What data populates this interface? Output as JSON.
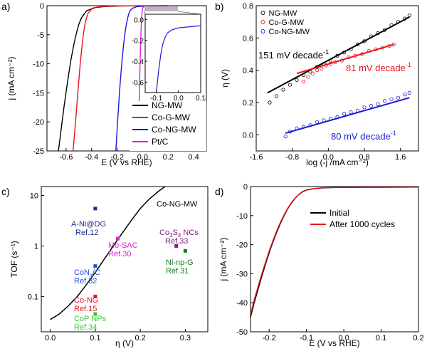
{
  "panel_labels": [
    "a)",
    "b)",
    "c)",
    "d)"
  ],
  "chart_data": [
    {
      "type": "line",
      "panel": "a)",
      "xlabel": "E (V vs RHE)",
      "ylabel": "j (mA cm⁻²)",
      "xlim": [
        -0.75,
        0.5
      ],
      "ylim": [
        -25,
        0
      ],
      "xticks": [
        "-0.6",
        "-0.4",
        "-0.2",
        "0.0",
        "0.2",
        "0.4"
      ],
      "yticks": [
        "0",
        "-5",
        "-10",
        "-15",
        "-20",
        "-25"
      ],
      "legend_position": "bottom-right",
      "series": [
        {
          "name": "NG-MW",
          "color": "#000000",
          "x": [
            -0.66,
            -0.64,
            -0.62,
            -0.6,
            -0.58,
            -0.56,
            -0.54,
            -0.52,
            -0.5,
            -0.48,
            -0.44,
            -0.38,
            -0.3,
            -0.2,
            -0.1,
            0.0,
            0.2
          ],
          "y": [
            -25,
            -21.5,
            -18,
            -14.8,
            -11.8,
            -9.1,
            -6.8,
            -4.8,
            -3.2,
            -2.1,
            -0.9,
            -0.35,
            -0.15,
            -0.06,
            -0.03,
            -0.01,
            0
          ]
        },
        {
          "name": "Co-G-MW",
          "color": "#e8141c",
          "x": [
            -0.545,
            -0.53,
            -0.52,
            -0.51,
            -0.5,
            -0.49,
            -0.48,
            -0.47,
            -0.46,
            -0.45,
            -0.43,
            -0.4,
            -0.36,
            -0.3,
            -0.2,
            0.0,
            0.2
          ],
          "y": [
            -25,
            -21,
            -18.4,
            -15.5,
            -12.8,
            -10.2,
            -7.9,
            -5.9,
            -4.2,
            -2.9,
            -1.4,
            -0.6,
            -0.25,
            -0.1,
            -0.04,
            -0.01,
            0
          ]
        },
        {
          "name": "Co-NG-MW",
          "color": "#1a1ad8",
          "x": [
            -0.21,
            -0.2,
            -0.19,
            -0.18,
            -0.17,
            -0.16,
            -0.15,
            -0.14,
            -0.13,
            -0.12,
            -0.11,
            -0.1,
            -0.08,
            -0.05,
            0.0,
            0.1,
            0.2
          ],
          "y": [
            -25,
            -21.2,
            -17.8,
            -14.6,
            -11.7,
            -9.1,
            -6.9,
            -5.0,
            -3.5,
            -2.4,
            -1.5,
            -0.9,
            -0.45,
            -0.2,
            -0.08,
            -0.03,
            0
          ]
        },
        {
          "name": "Pt/C",
          "color": "#e020e0",
          "x": [
            -0.03,
            -0.03,
            -0.025,
            -0.02,
            -0.015,
            -0.01,
            -0.005,
            0.0,
            0.01,
            0.03,
            0.1,
            0.2
          ],
          "y": [
            -25,
            -20,
            -15,
            -10,
            -6,
            -3,
            -1.2,
            -0.4,
            -0.1,
            -0.03,
            -0.01,
            0
          ]
        }
      ],
      "inset": {
        "xlim": [
          -0.15,
          0.1
        ],
        "ylim": [
          -0.7,
          0.05
        ],
        "xticks": [
          "-0.1",
          "0.0",
          "0.1"
        ],
        "yticks": [
          "0.0",
          "-0.2",
          "-0.4",
          "-0.6"
        ],
        "series": [
          {
            "name": "Co-NG-MW",
            "color": "#1a1ad8",
            "x": [
              -0.1,
              -0.095,
              -0.09,
              -0.085,
              -0.08,
              -0.075,
              -0.07,
              -0.06,
              -0.05,
              -0.03,
              0.0,
              0.05,
              0.1
            ],
            "y": [
              -0.7,
              -0.6,
              -0.5,
              -0.42,
              -0.34,
              -0.28,
              -0.23,
              -0.17,
              -0.13,
              -0.1,
              -0.08,
              -0.07,
              -0.06
            ]
          }
        ]
      }
    },
    {
      "type": "scatter",
      "panel": "b)",
      "xlabel": "log (-j /mA cm⁻²)",
      "ylabel": "η (V)",
      "xlim": [
        -1.6,
        2.0
      ],
      "ylim": [
        -0.1,
        0.8
      ],
      "xticks": [
        "-1.6",
        "-0.8",
        "0.0",
        "0.8",
        "1.6"
      ],
      "yticks": [
        "0.0",
        "0.2",
        "0.4",
        "0.6",
        "0.8"
      ],
      "legend_position": "top-left",
      "series": [
        {
          "name": "NG-MW",
          "color": "#000000",
          "x": [
            -1.3,
            -1.15,
            -1.0,
            -0.85,
            -0.7,
            -0.55,
            -0.4,
            -0.25,
            -0.1,
            0.05,
            0.2,
            0.35,
            0.5,
            0.65,
            0.8,
            0.95,
            1.1,
            1.25,
            1.4,
            1.55,
            1.7,
            1.8
          ],
          "y": [
            0.2,
            0.24,
            0.28,
            0.31,
            0.34,
            0.37,
            0.39,
            0.42,
            0.44,
            0.46,
            0.49,
            0.51,
            0.53,
            0.56,
            0.58,
            0.61,
            0.63,
            0.65,
            0.68,
            0.7,
            0.72,
            0.74
          ]
        },
        {
          "name": "Co-G-MW",
          "color": "#e8141c",
          "x": [
            -0.55,
            -0.45,
            -0.35,
            -0.25,
            -0.15,
            -0.05,
            0.05,
            0.15,
            0.3,
            0.45,
            0.6,
            0.75,
            0.9,
            1.05,
            1.2,
            1.35,
            1.45
          ],
          "y": [
            0.33,
            0.36,
            0.38,
            0.4,
            0.41,
            0.43,
            0.44,
            0.45,
            0.46,
            0.48,
            0.49,
            0.5,
            0.52,
            0.53,
            0.54,
            0.55,
            0.56
          ]
        },
        {
          "name": "Co-NG-MW",
          "color": "#1a1ad8",
          "x": [
            -0.95,
            -0.85,
            -0.7,
            -0.55,
            -0.4,
            -0.25,
            -0.1,
            0.05,
            0.2,
            0.35,
            0.5,
            0.65,
            0.8,
            0.95,
            1.1,
            1.25,
            1.4,
            1.55,
            1.7,
            1.8
          ],
          "y": [
            -0.01,
            0.02,
            0.04,
            0.05,
            0.06,
            0.08,
            0.09,
            0.1,
            0.11,
            0.13,
            0.14,
            0.15,
            0.17,
            0.18,
            0.19,
            0.21,
            0.22,
            0.23,
            0.25,
            0.26
          ]
        }
      ],
      "fits": [
        {
          "label": "151 mV decade-1",
          "color": "#000000",
          "x": [
            -1.35,
            1.8
          ],
          "y": [
            0.26,
            0.73
          ]
        },
        {
          "label": "81 mV decade-1",
          "color": "#e8141c",
          "x": [
            -0.7,
            1.45
          ],
          "y": [
            0.38,
            0.56
          ]
        },
        {
          "label": "80 mV decade-1",
          "color": "#1a1ad8",
          "x": [
            -0.95,
            1.8
          ],
          "y": [
            0.01,
            0.23
          ]
        }
      ],
      "annotations": [
        {
          "text": "151 mV decade",
          "sup": "-1",
          "color": "#000000"
        },
        {
          "text": "81 mV decade",
          "sup": "-1",
          "color": "#e8141c"
        },
        {
          "text": "80 mV decade",
          "sup": "-1",
          "color": "#1a1ad8"
        }
      ]
    },
    {
      "type": "scatter",
      "panel": "c)",
      "xlabel": "η (V)",
      "ylabel": "TOF (s⁻¹)",
      "yscale": "log",
      "xlim": [
        -0.02,
        0.35
      ],
      "ylim": [
        0.02,
        15
      ],
      "xticks": [
        "0.0",
        "0.1",
        "0.2",
        "0.3"
      ],
      "yticks": [
        "10",
        "1",
        "0.1"
      ],
      "curve": {
        "name": "Co-NG-MW",
        "color": "#000000",
        "x": [
          0.0,
          0.02,
          0.04,
          0.06,
          0.08,
          0.1,
          0.12,
          0.14,
          0.16,
          0.18,
          0.2,
          0.22,
          0.24,
          0.255
        ],
        "y": [
          0.035,
          0.045,
          0.065,
          0.1,
          0.17,
          0.3,
          0.55,
          1.0,
          1.8,
          3.2,
          5.5,
          8.5,
          12,
          15
        ]
      },
      "points": [
        {
          "label": "A-Ni@DG",
          "ref": "Ref.12",
          "x": 0.1,
          "y": 5.5,
          "color": "#1e2f8a"
        },
        {
          "label": "Mo-SAC",
          "ref": "Ref.30",
          "x": 0.15,
          "y": 1.4,
          "color": "#e020e0"
        },
        {
          "label": "CoNx/C",
          "ref": "Ref.32",
          "x": 0.1,
          "y": 0.4,
          "color": "#1a4fd8"
        },
        {
          "label": "Co-NG",
          "ref": "Ref.15",
          "x": 0.1,
          "y": 0.1,
          "color": "#e8141c"
        },
        {
          "label": "CoP NPs",
          "ref": "Ref.34",
          "x": 0.1,
          "y": 0.045,
          "color": "#33cc33"
        },
        {
          "label": "Co3S4 NCs",
          "ref": "Ref.33",
          "x": 0.28,
          "y": 1.0,
          "color": "#7a1f7a"
        },
        {
          "label": "Ni-np-G",
          "ref": "Ref.31",
          "x": 0.3,
          "y": 0.8,
          "color": "#1a7a1a"
        }
      ],
      "labels": {
        "curve": "Co-NG-MW",
        "a_ni": "A-Ni@DG",
        "ref12": "Ref.12",
        "mo_sac": "Mo-SAC",
        "ref30": "Ref.30",
        "co3s4_main": "Co",
        "co3s4_sub1": "3",
        "co3s4_mid": "S",
        "co3s4_sub2": "4",
        "co3s4_tail": " NCs",
        "ref33": "Ref.33",
        "ninpg": "Ni-np-G",
        "ref31": "Ref.31",
        "conx_main": "CoN",
        "conx_sub": "x",
        "conx_tail": "/C",
        "ref32": "Ref.32",
        "cong": "Co-NG",
        "ref15": "Ref.15",
        "cop": "CoP NPs",
        "ref34": "Ref.34"
      }
    },
    {
      "type": "line",
      "panel": "d)",
      "xlabel": "E (V vs RHE)",
      "ylabel": "j (mA cm⁻²)",
      "xlim": [
        -0.25,
        0.2
      ],
      "ylim": [
        -50,
        0
      ],
      "xticks": [
        "-0.2",
        "-0.1",
        "0.0",
        "0.1",
        "0.2"
      ],
      "yticks": [
        "0",
        "-10",
        "-20",
        "-30",
        "-40",
        "-50"
      ],
      "legend_position": "top-right",
      "series": [
        {
          "name": "Initial",
          "color": "#000000",
          "x": [
            -0.25,
            -0.24,
            -0.23,
            -0.22,
            -0.21,
            -0.2,
            -0.19,
            -0.18,
            -0.17,
            -0.16,
            -0.15,
            -0.14,
            -0.13,
            -0.12,
            -0.11,
            -0.1,
            -0.08,
            -0.06,
            -0.04,
            0.0,
            0.1,
            0.2
          ],
          "y": [
            -45,
            -40,
            -35.5,
            -31,
            -26.8,
            -22.8,
            -19.1,
            -15.8,
            -12.7,
            -10.0,
            -7.6,
            -5.6,
            -4.0,
            -2.7,
            -1.8,
            -1.2,
            -0.7,
            -0.5,
            -0.4,
            -0.3,
            -0.25,
            -0.2
          ]
        },
        {
          "name": "After 1000 cycles",
          "color": "#e8141c",
          "x": [
            -0.25,
            -0.24,
            -0.23,
            -0.22,
            -0.21,
            -0.2,
            -0.19,
            -0.18,
            -0.17,
            -0.16,
            -0.15,
            -0.14,
            -0.13,
            -0.12,
            -0.11,
            -0.1,
            -0.08,
            -0.06,
            -0.04,
            0.0,
            0.1,
            0.2
          ],
          "y": [
            -44,
            -39,
            -34.5,
            -30.2,
            -26.1,
            -22.2,
            -18.6,
            -15.3,
            -12.3,
            -9.7,
            -7.4,
            -5.4,
            -3.9,
            -2.6,
            -1.7,
            -1.1,
            -0.65,
            -0.45,
            -0.35,
            -0.3,
            -0.25,
            -0.2
          ]
        }
      ]
    }
  ]
}
